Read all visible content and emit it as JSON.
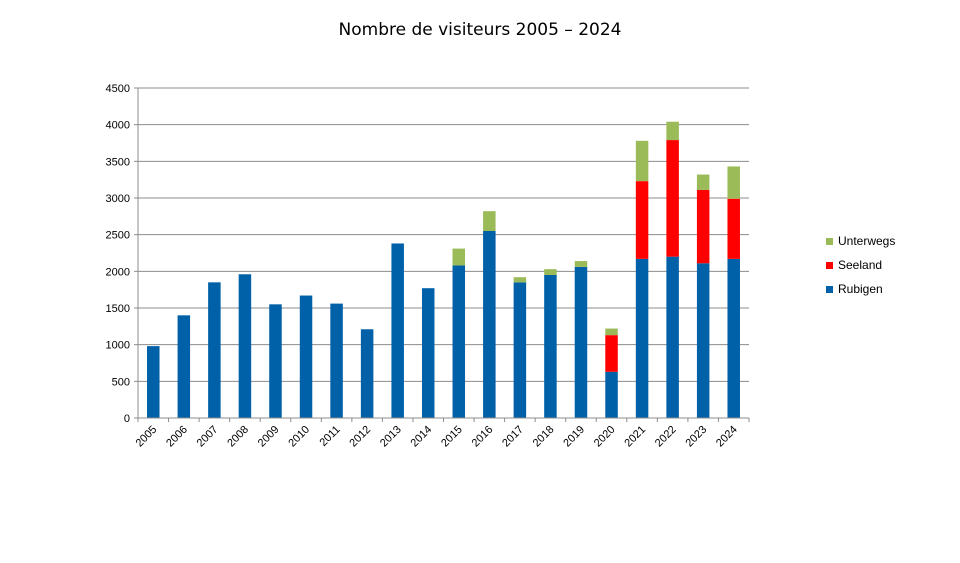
{
  "chart_data": {
    "type": "bar",
    "stacked": true,
    "title": "Nombre de visiteurs 2005 – 2024",
    "xlabel": "",
    "ylabel": "",
    "ylim": [
      0,
      4500
    ],
    "yticks": [
      "0",
      "500",
      "1000",
      "1500",
      "2000",
      "2500",
      "3000",
      "3500",
      "4000",
      "4500"
    ],
    "grid": true,
    "legend_position": "right",
    "categories": [
      "2005",
      "2006",
      "2007",
      "2008",
      "2009",
      "2010",
      "2011",
      "2012",
      "2013",
      "2014",
      "2015",
      "2016",
      "2017",
      "2018",
      "2019",
      "2020",
      "2021",
      "2022",
      "2023",
      "2024"
    ],
    "series": [
      {
        "name": "Rubigen",
        "color": "#0060a8",
        "values": [
          980,
          1400,
          1850,
          1960,
          1550,
          1670,
          1560,
          1210,
          2380,
          1770,
          2080,
          2550,
          1850,
          1950,
          2060,
          630,
          2170,
          2200,
          2110,
          2170
        ]
      },
      {
        "name": "Seeland",
        "color": "#ff0000",
        "values": [
          0,
          0,
          0,
          0,
          0,
          0,
          0,
          0,
          0,
          0,
          0,
          0,
          0,
          0,
          0,
          500,
          1060,
          1590,
          1000,
          820
        ]
      },
      {
        "name": "Unterwegs",
        "color": "#9bbb59",
        "values": [
          0,
          0,
          0,
          0,
          0,
          0,
          0,
          0,
          0,
          0,
          230,
          270,
          70,
          80,
          80,
          90,
          550,
          250,
          210,
          440
        ]
      }
    ]
  }
}
